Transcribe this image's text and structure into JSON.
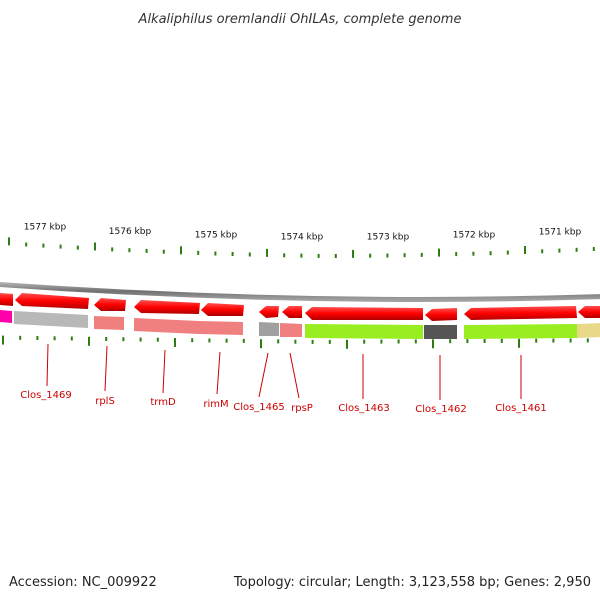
{
  "title": "Alkaliphilus oremlandii OhILAs, complete genome",
  "footer": {
    "accession": "Accession: NC_009922",
    "summary": "Topology: circular; Length: 3,123,558 bp; Genes: 2,950"
  },
  "colors": {
    "forward_arrow": "#ff0000",
    "backbone": "#808080",
    "tick": "#2e7d12",
    "gene_label": "#cc0000"
  },
  "kbp_labels": [
    "1577 kbp",
    "1576 kbp",
    "1575 kbp",
    "1574 kbp",
    "1573 kbp",
    "1572 kbp",
    "1571 kbp"
  ],
  "gene_labels": [
    "Clos_1469",
    "rplS",
    "trmD",
    "rimM",
    "Clos_1465",
    "rpsP",
    "Clos_1463",
    "Clos_1462",
    "Clos_1461"
  ],
  "category_bar_colors": [
    "#ff00aa",
    "#b8b8b8",
    "#f08080",
    "#f08080",
    "#f08080",
    "#a0a0a0",
    "#f08080",
    "#99ee22",
    "#555555",
    "#99ee22",
    "#e8d888"
  ]
}
